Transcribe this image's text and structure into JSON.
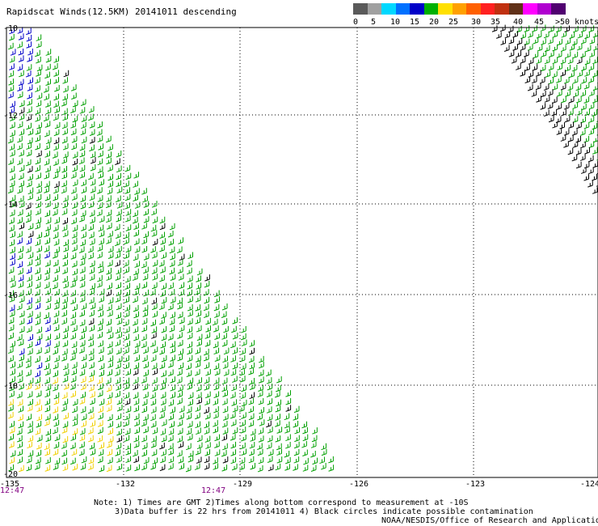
{
  "title": "Rapidscat Winds(12.5KM) 20141011 descending",
  "scale": {
    "labels": [
      "0",
      "5",
      "10",
      "15",
      "20",
      "25",
      "30",
      "35",
      "40",
      "45",
      ">50 knots"
    ],
    "colors": [
      "#5a5a5a",
      "#a0a0a0",
      "#00d8ff",
      "#0070ff",
      "#0000c8",
      "#00b000",
      "#ffe000",
      "#ffa000",
      "#ff6000",
      "#ff2020",
      "#c03010",
      "#603018",
      "#ff00ff",
      "#b000d0",
      "#500070"
    ]
  },
  "axes": {
    "lat_labels": [
      "-10",
      "-12",
      "-14",
      "-16",
      "-18",
      "-20"
    ],
    "lon_labels": [
      "-135",
      "-132",
      "-129",
      "-126",
      "-123",
      "-124"
    ],
    "time_labels": [
      "12:47",
      "12:47"
    ]
  },
  "notes": {
    "line1": "Note: 1) Times are GMT 2)Times along bottom correspond to measurement at -10S",
    "line2": "3)Data buffer is 22 hrs from 20141011 4) Black circles indicate possible contamination"
  },
  "credit": "NOAA/NESDIS/Office of Research and Applications"
}
